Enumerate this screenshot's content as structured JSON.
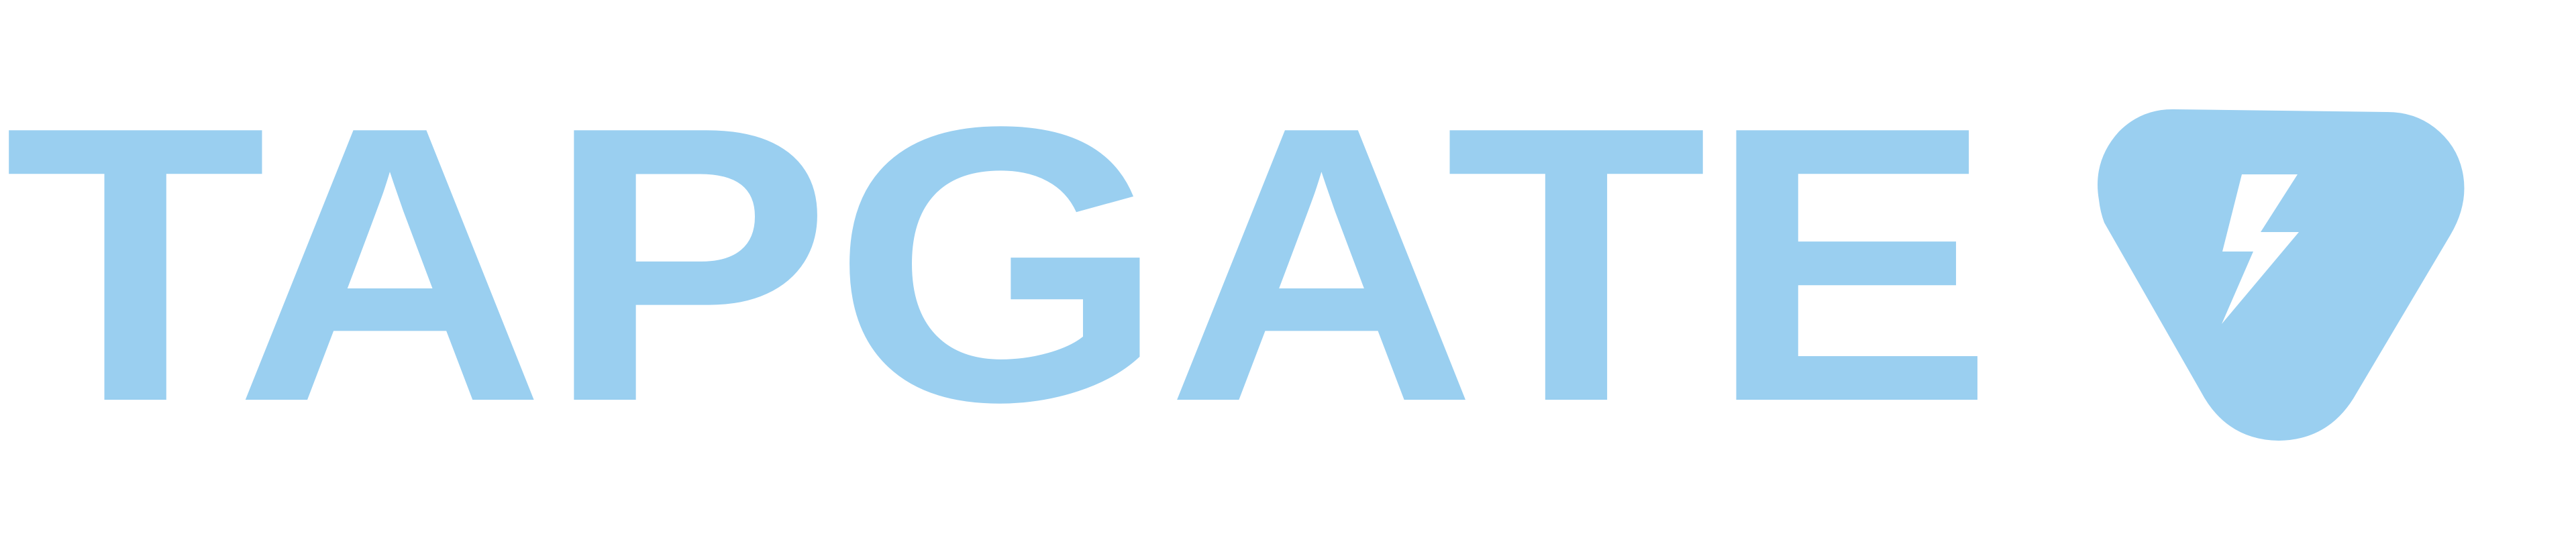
{
  "logo": {
    "wordmark": "TAPGATE",
    "icon": "bolt-triangle-icon",
    "colors": {
      "brand": "#9ACFF0",
      "background": "#FFFFFF"
    }
  }
}
